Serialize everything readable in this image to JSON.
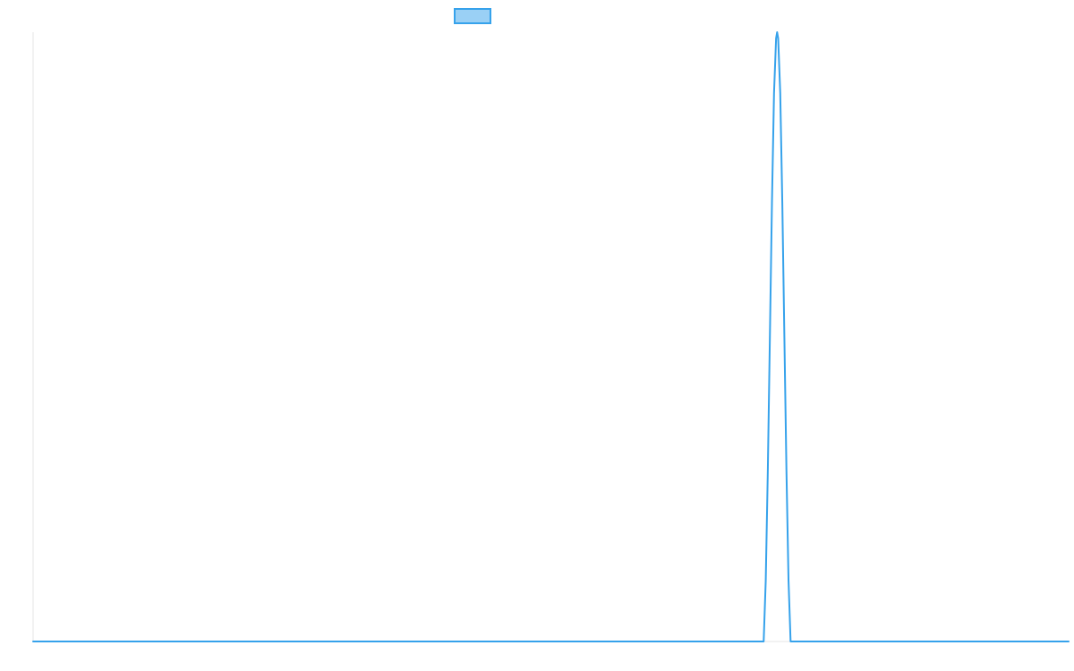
{
  "chart_data": {
    "type": "line",
    "title": "",
    "xlabel": "",
    "ylabel": "",
    "grid": false,
    "legend_position": "top-center",
    "xlim": [
      0,
      1
    ],
    "ylim": [
      0,
      1
    ],
    "series": [
      {
        "label": "",
        "points": [
          [
            0.0,
            0.0
          ],
          [
            0.7055,
            0.0
          ],
          [
            0.7075,
            0.1
          ],
          [
            0.7095,
            0.28
          ],
          [
            0.7115,
            0.5
          ],
          [
            0.7135,
            0.72
          ],
          [
            0.7155,
            0.9
          ],
          [
            0.7175,
            0.99
          ],
          [
            0.7185,
            1.0
          ],
          [
            0.7195,
            0.99
          ],
          [
            0.7215,
            0.9
          ],
          [
            0.7235,
            0.72
          ],
          [
            0.7255,
            0.5
          ],
          [
            0.7275,
            0.28
          ],
          [
            0.7295,
            0.1
          ],
          [
            0.7315,
            0.0
          ],
          [
            1.0,
            0.0
          ]
        ]
      }
    ]
  },
  "colors": {
    "series_line": "#36a2eb",
    "legend_fill": "#9ad0f5",
    "axis": "#e6e6e6"
  }
}
